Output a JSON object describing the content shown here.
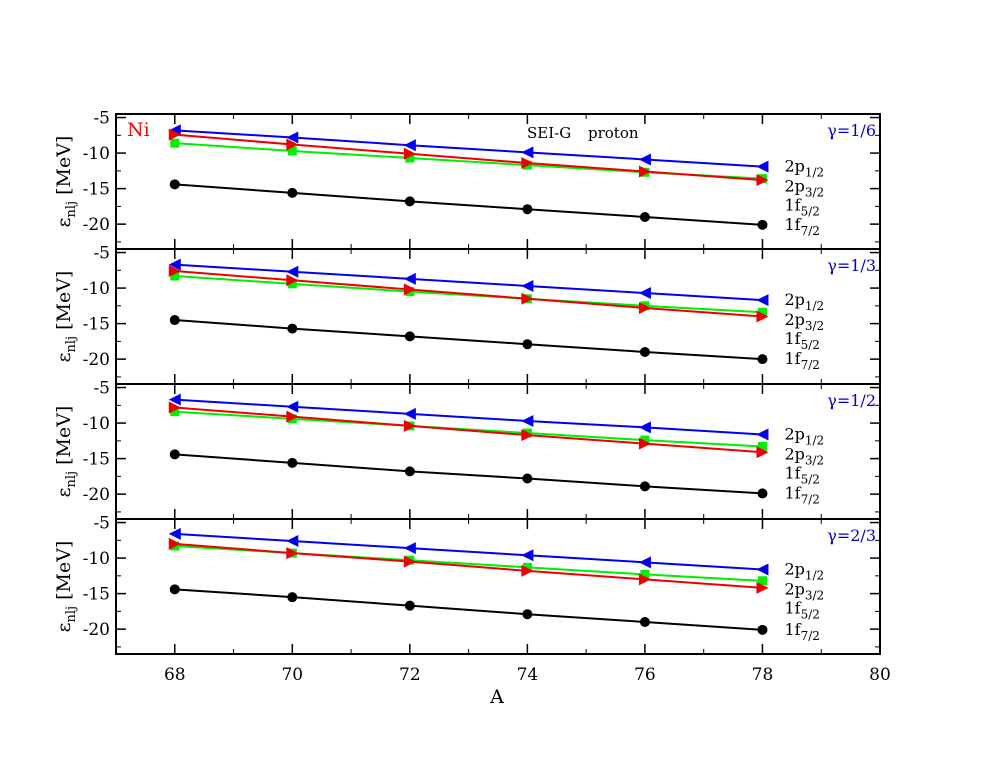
{
  "figure": {
    "element": "Ni",
    "header_left": "SEI-G",
    "header_right": "proton",
    "xlabel": "A",
    "ylabel_main": "ε",
    "ylabel_sub": "nlj",
    "ylabel_unit": "[MeV]",
    "xlim": [
      67,
      80
    ],
    "ylim": [
      -23.5,
      -4.5
    ],
    "x_ticks": [
      68,
      70,
      72,
      74,
      76,
      78,
      80
    ],
    "y_ticks": [
      -5,
      -10,
      -15,
      -20
    ]
  },
  "colors": {
    "element_label": "#ff0000",
    "gamma_label": "#0000cc",
    "2p1/2": "#0000ee",
    "2p3/2": "#00ee00",
    "1f5/2": "#ee0000",
    "1f7/2": "#000000"
  },
  "level_labels": [
    {
      "main": "2p",
      "sub": "1/2"
    },
    {
      "main": "2p",
      "sub": "3/2"
    },
    {
      "main": "1f",
      "sub": "5/2"
    },
    {
      "main": "1f",
      "sub": "7/2"
    }
  ],
  "chart_data": [
    {
      "type": "line",
      "gamma": "γ=1/6",
      "x": [
        68,
        70,
        72,
        74,
        76,
        78
      ],
      "series": [
        {
          "key": "2p1/2",
          "marker": "triangle-left",
          "values": [
            -6.8,
            -7.8,
            -8.9,
            -9.9,
            -10.9,
            -11.9
          ]
        },
        {
          "key": "2p3/2",
          "marker": "square",
          "values": [
            -8.6,
            -9.7,
            -10.7,
            -11.7,
            -12.7,
            -13.6
          ]
        },
        {
          "key": "1f5/2",
          "marker": "triangle-right",
          "values": [
            -7.4,
            -8.8,
            -10.1,
            -11.4,
            -12.6,
            -13.8
          ]
        },
        {
          "key": "1f7/2",
          "marker": "circle",
          "values": [
            -14.4,
            -15.6,
            -16.8,
            -17.9,
            -19.0,
            -20.1
          ]
        }
      ]
    },
    {
      "type": "line",
      "gamma": "γ=1/3",
      "x": [
        68,
        70,
        72,
        74,
        76,
        78
      ],
      "series": [
        {
          "key": "2p1/2",
          "marker": "triangle-left",
          "values": [
            -6.7,
            -7.7,
            -8.7,
            -9.7,
            -10.7,
            -11.7
          ]
        },
        {
          "key": "2p3/2",
          "marker": "square",
          "values": [
            -8.3,
            -9.4,
            -10.5,
            -11.5,
            -12.5,
            -13.4
          ]
        },
        {
          "key": "1f5/2",
          "marker": "triangle-right",
          "values": [
            -7.6,
            -8.9,
            -10.2,
            -11.5,
            -12.8,
            -14.0
          ]
        },
        {
          "key": "1f7/2",
          "marker": "circle",
          "values": [
            -14.5,
            -15.7,
            -16.8,
            -17.9,
            -19.0,
            -20.0
          ]
        }
      ]
    },
    {
      "type": "line",
      "gamma": "γ=1/2",
      "x": [
        68,
        70,
        72,
        74,
        76,
        78
      ],
      "series": [
        {
          "key": "2p1/2",
          "marker": "triangle-left",
          "values": [
            -6.7,
            -7.7,
            -8.7,
            -9.7,
            -10.6,
            -11.6
          ]
        },
        {
          "key": "2p3/2",
          "marker": "square",
          "values": [
            -8.4,
            -9.4,
            -10.4,
            -11.4,
            -12.4,
            -13.3
          ]
        },
        {
          "key": "1f5/2",
          "marker": "triangle-right",
          "values": [
            -7.8,
            -9.1,
            -10.4,
            -11.7,
            -12.9,
            -14.1
          ]
        },
        {
          "key": "1f7/2",
          "marker": "circle",
          "values": [
            -14.4,
            -15.6,
            -16.8,
            -17.8,
            -18.9,
            -19.9
          ]
        }
      ]
    },
    {
      "type": "line",
      "gamma": "γ=2/3",
      "x": [
        68,
        70,
        72,
        74,
        76,
        78
      ],
      "series": [
        {
          "key": "2p1/2",
          "marker": "triangle-left",
          "values": [
            -6.6,
            -7.6,
            -8.6,
            -9.6,
            -10.6,
            -11.6
          ]
        },
        {
          "key": "2p3/2",
          "marker": "square",
          "values": [
            -8.3,
            -9.3,
            -10.3,
            -11.3,
            -12.3,
            -13.2
          ]
        },
        {
          "key": "1f5/2",
          "marker": "triangle-right",
          "values": [
            -8.0,
            -9.3,
            -10.5,
            -11.8,
            -13.0,
            -14.2
          ]
        },
        {
          "key": "1f7/2",
          "marker": "circle",
          "values": [
            -14.4,
            -15.5,
            -16.7,
            -17.9,
            -19.0,
            -20.1
          ]
        }
      ]
    }
  ]
}
